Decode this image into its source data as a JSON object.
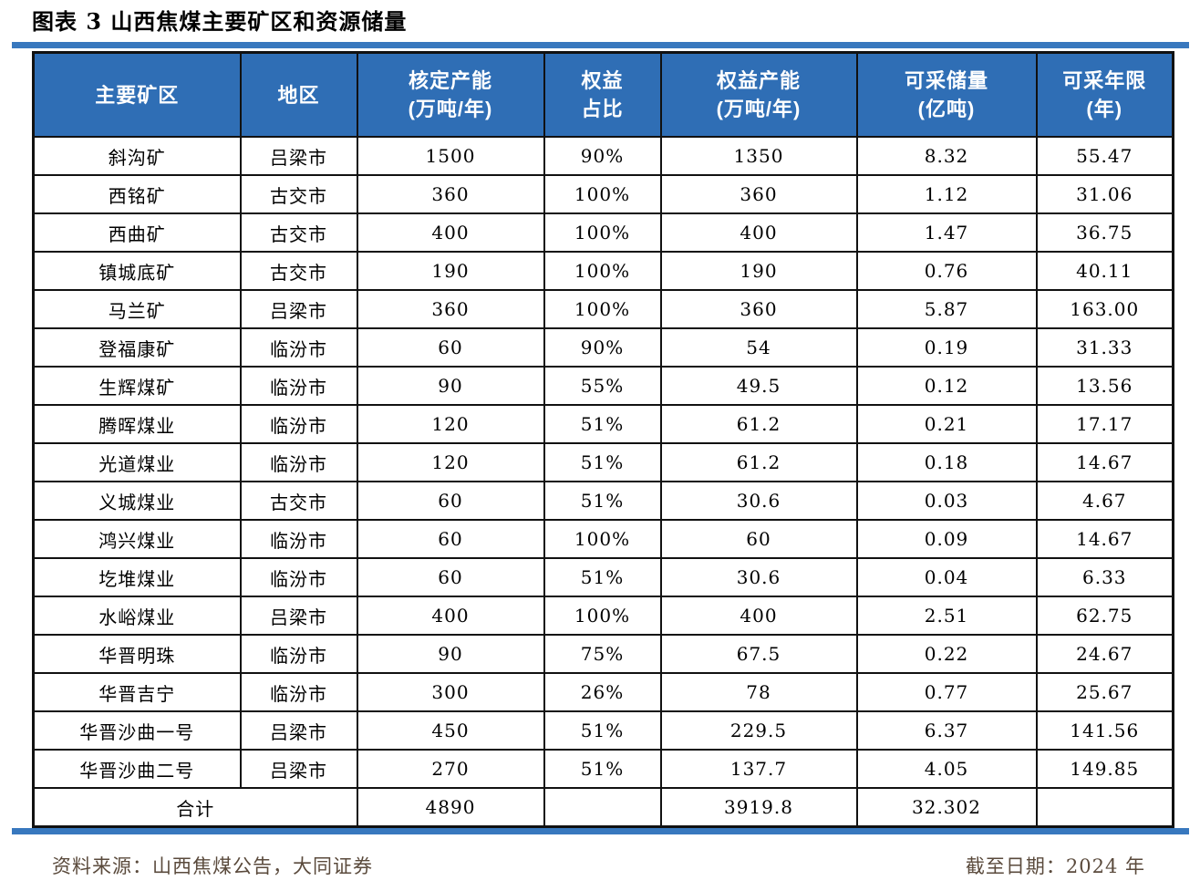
{
  "page": {
    "title": "图表 3 山西焦煤主要矿区和资源储量",
    "footer": {
      "source": "资料来源：山西焦煤公告，大同证券",
      "date_label": "截至日期：2024 年"
    }
  },
  "colors": {
    "header_bg": "#2F6EB5",
    "accent_bar": "#3878BE",
    "footer_text": "#5A4A3C",
    "grid": "#111111",
    "header_text": "#FFFFFF"
  },
  "chart_data": {
    "type": "table",
    "title": "图表 3 山西焦煤主要矿区和资源储量",
    "columns": [
      {
        "key": "name",
        "label": "主要矿区"
      },
      {
        "key": "region",
        "label": "地区"
      },
      {
        "key": "capacity",
        "label": "核定产能\n(万吨/年)"
      },
      {
        "key": "ratio",
        "label": "权益\n占比"
      },
      {
        "key": "equity_capacity",
        "label": "权益产能\n(万吨/年)"
      },
      {
        "key": "reserves",
        "label": "可采储量\n(亿吨)"
      },
      {
        "key": "years",
        "label": "可采年限\n(年)"
      }
    ],
    "rows": [
      {
        "name": "斜沟矿",
        "region": "吕梁市",
        "capacity": "1500",
        "ratio": "90%",
        "equity_capacity": "1350",
        "reserves": "8.32",
        "years": "55.47"
      },
      {
        "name": "西铭矿",
        "region": "古交市",
        "capacity": "360",
        "ratio": "100%",
        "equity_capacity": "360",
        "reserves": "1.12",
        "years": "31.06"
      },
      {
        "name": "西曲矿",
        "region": "古交市",
        "capacity": "400",
        "ratio": "100%",
        "equity_capacity": "400",
        "reserves": "1.47",
        "years": "36.75"
      },
      {
        "name": "镇城底矿",
        "region": "古交市",
        "capacity": "190",
        "ratio": "100%",
        "equity_capacity": "190",
        "reserves": "0.76",
        "years": "40.11"
      },
      {
        "name": "马兰矿",
        "region": "吕梁市",
        "capacity": "360",
        "ratio": "100%",
        "equity_capacity": "360",
        "reserves": "5.87",
        "years": "163.00"
      },
      {
        "name": "登福康矿",
        "region": "临汾市",
        "capacity": "60",
        "ratio": "90%",
        "equity_capacity": "54",
        "reserves": "0.19",
        "years": "31.33"
      },
      {
        "name": "生辉煤矿",
        "region": "临汾市",
        "capacity": "90",
        "ratio": "55%",
        "equity_capacity": "49.5",
        "reserves": "0.12",
        "years": "13.56"
      },
      {
        "name": "腾晖煤业",
        "region": "临汾市",
        "capacity": "120",
        "ratio": "51%",
        "equity_capacity": "61.2",
        "reserves": "0.21",
        "years": "17.17"
      },
      {
        "name": "光道煤业",
        "region": "临汾市",
        "capacity": "120",
        "ratio": "51%",
        "equity_capacity": "61.2",
        "reserves": "0.18",
        "years": "14.67"
      },
      {
        "name": "义城煤业",
        "region": "古交市",
        "capacity": "60",
        "ratio": "51%",
        "equity_capacity": "30.6",
        "reserves": "0.03",
        "years": "4.67"
      },
      {
        "name": "鸿兴煤业",
        "region": "临汾市",
        "capacity": "60",
        "ratio": "100%",
        "equity_capacity": "60",
        "reserves": "0.09",
        "years": "14.67"
      },
      {
        "name": "圪堆煤业",
        "region": "临汾市",
        "capacity": "60",
        "ratio": "51%",
        "equity_capacity": "30.6",
        "reserves": "0.04",
        "years": "6.33"
      },
      {
        "name": "水峪煤业",
        "region": "吕梁市",
        "capacity": "400",
        "ratio": "100%",
        "equity_capacity": "400",
        "reserves": "2.51",
        "years": "62.75"
      },
      {
        "name": "华晋明珠",
        "region": "临汾市",
        "capacity": "90",
        "ratio": "75%",
        "equity_capacity": "67.5",
        "reserves": "0.22",
        "years": "24.67"
      },
      {
        "name": "华晋吉宁",
        "region": "临汾市",
        "capacity": "300",
        "ratio": "26%",
        "equity_capacity": "78",
        "reserves": "0.77",
        "years": "25.67"
      },
      {
        "name": "华晋沙曲一号",
        "region": "吕梁市",
        "capacity": "450",
        "ratio": "51%",
        "equity_capacity": "229.5",
        "reserves": "6.37",
        "years": "141.56"
      },
      {
        "name": "华晋沙曲二号",
        "region": "吕梁市",
        "capacity": "270",
        "ratio": "51%",
        "equity_capacity": "137.7",
        "reserves": "4.05",
        "years": "149.85"
      }
    ],
    "total_row": {
      "label": "合计",
      "capacity": "4890",
      "ratio": "",
      "equity_capacity": "3919.8",
      "reserves": "32.302",
      "years": ""
    }
  }
}
